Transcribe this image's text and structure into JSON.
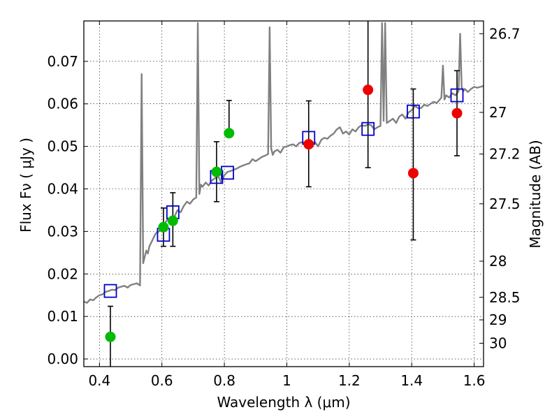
{
  "chart_data": {
    "type": "scatter",
    "xlabel": "Wavelength  λ (μm)",
    "ylabel": "Flux  Fν  ( μJy )",
    "ylabel_right": "Magnitude (AB)",
    "xlim": [
      0.35,
      1.63
    ],
    "ylim": [
      -0.0018,
      0.0795
    ],
    "grid": true,
    "x_ticks": [
      0.4,
      0.6,
      0.8,
      1.0,
      1.2,
      1.4,
      1.6
    ],
    "x_tick_labels": [
      "0.4",
      "0.6",
      "0.8",
      "1",
      "1.2",
      "1.4",
      "1.6"
    ],
    "y_ticks": [
      0.0,
      0.01,
      0.02,
      0.03,
      0.04,
      0.05,
      0.06,
      0.07
    ],
    "y_tick_labels": [
      "0.00",
      "0.01",
      "0.02",
      "0.03",
      "0.04",
      "0.05",
      "0.06",
      "0.07"
    ],
    "right_ticks": [
      {
        "label": "26.7",
        "flux": 0.0765
      },
      {
        "label": "27",
        "flux": 0.058
      },
      {
        "label": "27.2",
        "flux": 0.0482
      },
      {
        "label": "27.5",
        "flux": 0.0365
      },
      {
        "label": "28",
        "flux": 0.023
      },
      {
        "label": "28.5",
        "flux": 0.0145
      },
      {
        "label": "29",
        "flux": 0.0092
      },
      {
        "label": "30",
        "flux": 0.0037
      }
    ],
    "series": [
      {
        "kind": "line",
        "color": "#808080",
        "x": [
          0.35,
          0.36,
          0.37,
          0.38,
          0.39,
          0.4,
          0.41,
          0.42,
          0.43,
          0.44,
          0.45,
          0.46,
          0.47,
          0.48,
          0.49,
          0.5,
          0.51,
          0.52,
          0.53,
          0.535,
          0.54,
          0.545,
          0.55,
          0.555,
          0.56,
          0.57,
          0.58,
          0.59,
          0.6,
          0.61,
          0.62,
          0.63,
          0.64,
          0.65,
          0.66,
          0.67,
          0.68,
          0.69,
          0.7,
          0.71,
          0.715,
          0.72,
          0.725,
          0.73,
          0.74,
          0.75,
          0.76,
          0.77,
          0.78,
          0.79,
          0.8,
          0.81,
          0.82,
          0.83,
          0.84,
          0.85,
          0.86,
          0.87,
          0.88,
          0.89,
          0.9,
          0.91,
          0.92,
          0.93,
          0.94,
          0.945,
          0.95,
          0.955,
          0.96,
          0.97,
          0.98,
          0.99,
          1.0,
          1.01,
          1.02,
          1.03,
          1.04,
          1.05,
          1.06,
          1.07,
          1.08,
          1.09,
          1.1,
          1.11,
          1.12,
          1.13,
          1.14,
          1.15,
          1.16,
          1.17,
          1.18,
          1.19,
          1.2,
          1.21,
          1.22,
          1.23,
          1.24,
          1.25,
          1.26,
          1.27,
          1.28,
          1.29,
          1.3,
          1.305,
          1.31,
          1.315,
          1.32,
          1.33,
          1.34,
          1.35,
          1.36,
          1.37,
          1.38,
          1.39,
          1.4,
          1.41,
          1.42,
          1.43,
          1.44,
          1.45,
          1.46,
          1.47,
          1.48,
          1.49,
          1.495,
          1.5,
          1.505,
          1.51,
          1.52,
          1.53,
          1.54,
          1.55,
          1.555,
          1.56,
          1.565,
          1.57,
          1.58,
          1.59,
          1.6,
          1.61,
          1.62,
          1.63
        ],
        "y": [
          0.0135,
          0.0132,
          0.014,
          0.0138,
          0.0145,
          0.015,
          0.0152,
          0.0158,
          0.016,
          0.0163,
          0.0162,
          0.0168,
          0.017,
          0.0172,
          0.0168,
          0.0174,
          0.0176,
          0.0178,
          0.0173,
          0.067,
          0.0225,
          0.024,
          0.0255,
          0.0248,
          0.0265,
          0.028,
          0.0295,
          0.03,
          0.031,
          0.032,
          0.033,
          0.032,
          0.0335,
          0.035,
          0.0345,
          0.036,
          0.037,
          0.0365,
          0.0375,
          0.038,
          0.079,
          0.0388,
          0.041,
          0.0405,
          0.0415,
          0.0408,
          0.042,
          0.0425,
          0.043,
          0.0415,
          0.0432,
          0.044,
          0.0442,
          0.0445,
          0.0448,
          0.0452,
          0.0455,
          0.0458,
          0.046,
          0.047,
          0.0465,
          0.047,
          0.0475,
          0.0478,
          0.0482,
          0.078,
          0.0495,
          0.048,
          0.0488,
          0.0492,
          0.0485,
          0.0498,
          0.05,
          0.0503,
          0.0505,
          0.05,
          0.0508,
          0.051,
          0.0505,
          0.0512,
          0.0505,
          0.051,
          0.05,
          0.0515,
          0.052,
          0.0518,
          0.0525,
          0.053,
          0.054,
          0.0545,
          0.053,
          0.0535,
          0.0528,
          0.054,
          0.0535,
          0.0545,
          0.055,
          0.0548,
          0.0552,
          0.055,
          0.054,
          0.0545,
          0.0548,
          0.079,
          0.056,
          0.079,
          0.0555,
          0.056,
          0.0565,
          0.0555,
          0.057,
          0.0575,
          0.0565,
          0.058,
          0.0585,
          0.0595,
          0.059,
          0.059,
          0.0598,
          0.0595,
          0.06,
          0.0605,
          0.0602,
          0.061,
          0.0615,
          0.069,
          0.061,
          0.062,
          0.0615,
          0.0625,
          0.062,
          0.063,
          0.0765,
          0.064,
          0.063,
          0.0635,
          0.0628,
          0.0635,
          0.064,
          0.0638,
          0.064,
          0.0642
        ]
      },
      {
        "kind": "markers",
        "marker": "square-open",
        "color": "#0000cc",
        "x": [
          0.435,
          0.605,
          0.635,
          0.775,
          0.81,
          1.07,
          1.26,
          1.405,
          1.545
        ],
        "y": [
          0.016,
          0.0292,
          0.0345,
          0.0428,
          0.0438,
          0.052,
          0.0541,
          0.0582,
          0.062
        ]
      },
      {
        "kind": "markers",
        "marker": "circle",
        "color": "#00bb00",
        "x": [
          0.435,
          0.605,
          0.635,
          0.775,
          0.815
        ],
        "y": [
          0.0052,
          0.031,
          0.0325,
          0.044,
          0.0531
        ],
        "err_low": [
          0.0072,
          0.0045,
          0.006,
          0.007,
          0.0
        ],
        "err_high": [
          0.0072,
          0.0045,
          0.0066,
          0.0071,
          0.0077
        ]
      },
      {
        "kind": "markers",
        "marker": "circle",
        "color": "#ee0000",
        "x": [
          1.07,
          1.26,
          1.405,
          1.545
        ],
        "y": [
          0.0505,
          0.0633,
          0.0437,
          0.0578
        ],
        "err_low": [
          0.01,
          0.0183,
          0.0157,
          0.01
        ],
        "err_high": [
          0.0102,
          0.02,
          0.0198,
          0.01
        ]
      }
    ]
  }
}
